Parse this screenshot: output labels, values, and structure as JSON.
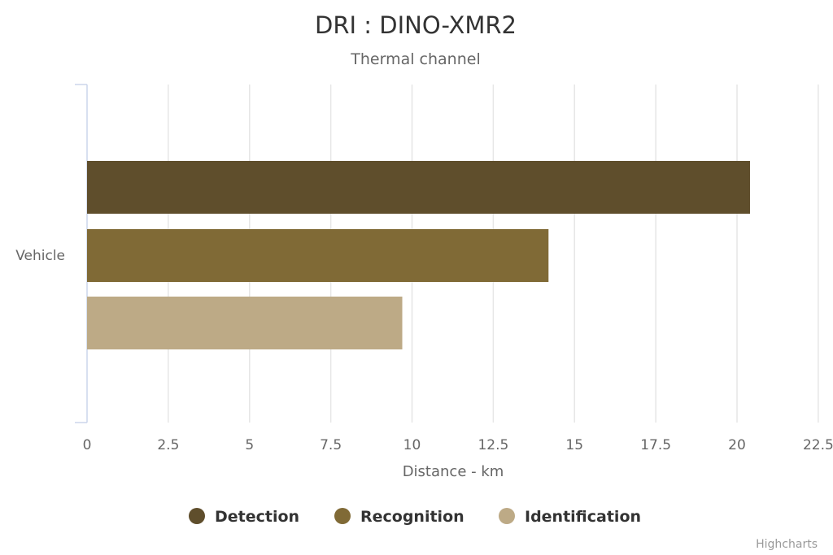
{
  "chart_data": {
    "type": "bar",
    "orientation": "horizontal",
    "title": "DRI : DINO-XMR2",
    "subtitle": "Thermal channel",
    "categories": [
      "Vehicle"
    ],
    "xlabel": "Distance - km",
    "ylabel": "",
    "xlim": [
      0,
      22.5
    ],
    "ticks": [
      "0",
      "2.5",
      "5",
      "7.5",
      "10",
      "12.5",
      "15",
      "17.5",
      "20",
      "22.5"
    ],
    "tick_values": [
      0,
      2.5,
      5,
      7.5,
      10,
      12.5,
      15,
      17.5,
      20,
      22.5
    ],
    "grid": true,
    "legend_position": "bottom",
    "series": [
      {
        "name": "Detection",
        "values": [
          20.4
        ],
        "color": "#5f4e2c"
      },
      {
        "name": "Recognition",
        "values": [
          14.2
        ],
        "color": "#806a36"
      },
      {
        "name": "Identification",
        "values": [
          9.7
        ],
        "color": "#bdaa86"
      }
    ]
  },
  "credits": "Highcharts"
}
